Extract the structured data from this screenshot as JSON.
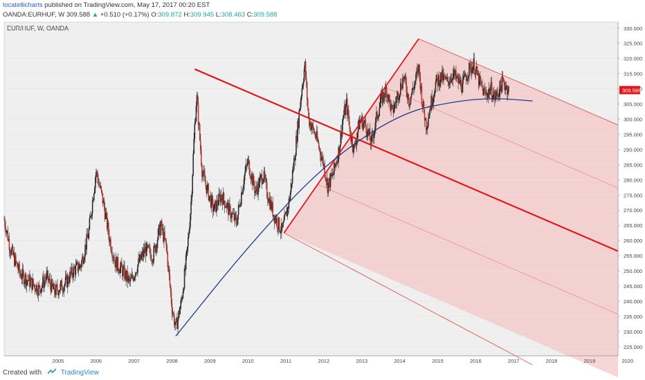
{
  "header": {
    "author": "locatellicharts",
    "published_text": "published on TradingView.com, May 17, 2017 00:20 EST",
    "symbol_line": "OANDA:EURHUF, W",
    "last": "309.588",
    "change_arrow": "▲",
    "change": "+0.510 (+0.17%)",
    "o_label": "O:",
    "o_value": "309.872",
    "h_label": "H:",
    "h_value": "309.945",
    "l_label": "L:",
    "l_value": "308.463",
    "c_label": "C:",
    "c_value": "309.588"
  },
  "pane_label": "EUR/HUF, W, OANDA",
  "footer": {
    "created_with": "Created with",
    "brand": "TradingView"
  },
  "colors": {
    "up_bar": "#2b2b2b",
    "down_bar": "#c0392b",
    "pitchfork_main": "#e3171b",
    "pitchfork_fill": "#f4c5c5",
    "curve": "#1f3d8a",
    "price_tag_bg": "#e3171b",
    "plot_bg": "#f0efef"
  },
  "chart_data": {
    "type": "candlestick",
    "symbol": "EUR/HUF",
    "interval": "W",
    "ylim": [
      222,
      332
    ],
    "xlim": [
      2004.08,
      2020.25
    ],
    "y_ticks": [
      "225.000",
      "230.000",
      "235.000",
      "240.000",
      "245.000",
      "250.000",
      "255.000",
      "260.000",
      "265.000",
      "270.000",
      "275.000",
      "280.000",
      "285.000",
      "290.000",
      "295.000",
      "300.000",
      "305.000",
      "310.000",
      "315.000",
      "320.000",
      "325.000",
      "330.000"
    ],
    "x_ticks": [
      "2005",
      "2006",
      "2007",
      "2008",
      "2009",
      "2010",
      "2011",
      "2012",
      "2013",
      "2014",
      "2015",
      "2016",
      "2017",
      "2018",
      "2019",
      "2020"
    ],
    "last_price_label": "309.588",
    "price_path": [
      [
        2004.08,
        267
      ],
      [
        2004.25,
        257
      ],
      [
        2004.5,
        249
      ],
      [
        2004.8,
        246
      ],
      [
        2005.0,
        244
      ],
      [
        2005.2,
        248
      ],
      [
        2005.4,
        243
      ],
      [
        2005.7,
        246
      ],
      [
        2005.9,
        250
      ],
      [
        2006.1,
        252
      ],
      [
        2006.3,
        262
      ],
      [
        2006.5,
        283
      ],
      [
        2006.7,
        272
      ],
      [
        2006.85,
        261
      ],
      [
        2007.0,
        253
      ],
      [
        2007.2,
        250
      ],
      [
        2007.4,
        246
      ],
      [
        2007.6,
        252
      ],
      [
        2007.8,
        257
      ],
      [
        2008.0,
        255
      ],
      [
        2008.2,
        265
      ],
      [
        2008.35,
        258
      ],
      [
        2008.5,
        238
      ],
      [
        2008.6,
        231
      ],
      [
        2008.75,
        240
      ],
      [
        2008.9,
        256
      ],
      [
        2009.0,
        272
      ],
      [
        2009.1,
        298
      ],
      [
        2009.15,
        308
      ],
      [
        2009.3,
        282
      ],
      [
        2009.45,
        276
      ],
      [
        2009.6,
        270
      ],
      [
        2009.8,
        275
      ],
      [
        2010.0,
        270
      ],
      [
        2010.2,
        266
      ],
      [
        2010.4,
        281
      ],
      [
        2010.5,
        286
      ],
      [
        2010.7,
        276
      ],
      [
        2010.9,
        282
      ],
      [
        2011.0,
        276
      ],
      [
        2011.2,
        268
      ],
      [
        2011.4,
        263
      ],
      [
        2011.5,
        268
      ],
      [
        2011.6,
        274
      ],
      [
        2011.75,
        290
      ],
      [
        2011.9,
        308
      ],
      [
        2012.0,
        318
      ],
      [
        2012.1,
        300
      ],
      [
        2012.3,
        294
      ],
      [
        2012.5,
        285
      ],
      [
        2012.6,
        278
      ],
      [
        2012.75,
        282
      ],
      [
        2012.9,
        290
      ],
      [
        2013.0,
        300
      ],
      [
        2013.1,
        305
      ],
      [
        2013.2,
        295
      ],
      [
        2013.3,
        290
      ],
      [
        2013.45,
        300
      ],
      [
        2013.6,
        298
      ],
      [
        2013.75,
        292
      ],
      [
        2013.9,
        301
      ],
      [
        2014.0,
        306
      ],
      [
        2014.15,
        310
      ],
      [
        2014.3,
        302
      ],
      [
        2014.45,
        308
      ],
      [
        2014.6,
        314
      ],
      [
        2014.75,
        306
      ],
      [
        2014.9,
        312
      ],
      [
        2015.0,
        317
      ],
      [
        2015.1,
        305
      ],
      [
        2015.2,
        298
      ],
      [
        2015.3,
        304
      ],
      [
        2015.45,
        312
      ],
      [
        2015.6,
        314
      ],
      [
        2015.75,
        312
      ],
      [
        2015.9,
        315
      ],
      [
        2016.0,
        313
      ],
      [
        2016.15,
        311
      ],
      [
        2016.3,
        316
      ],
      [
        2016.45,
        318
      ],
      [
        2016.6,
        312
      ],
      [
        2016.75,
        308
      ],
      [
        2016.9,
        310
      ],
      [
        2017.0,
        307
      ],
      [
        2017.1,
        309
      ],
      [
        2017.2,
        312
      ],
      [
        2017.3,
        311
      ],
      [
        2017.38,
        309.588
      ]
    ],
    "parabolic_arc": [
      [
        2008.6,
        228.5
      ],
      [
        2010.5,
        258
      ],
      [
        2012.5,
        285
      ],
      [
        2014.5,
        302
      ],
      [
        2016.0,
        306
      ],
      [
        2017.0,
        307
      ],
      [
        2018.0,
        306
      ]
    ],
    "pitchfork": {
      "anchor_a": [
        2009.1,
        316.5
      ],
      "anchor_b": [
        2015.0,
        326.5
      ],
      "anchor_c": [
        2011.45,
        262.5
      ],
      "median_end": [
        2020.25,
        256.5
      ],
      "handle_end": [
        2018.0,
        219
      ],
      "upper_end": [
        2020.25,
        298.5
      ]
    }
  }
}
